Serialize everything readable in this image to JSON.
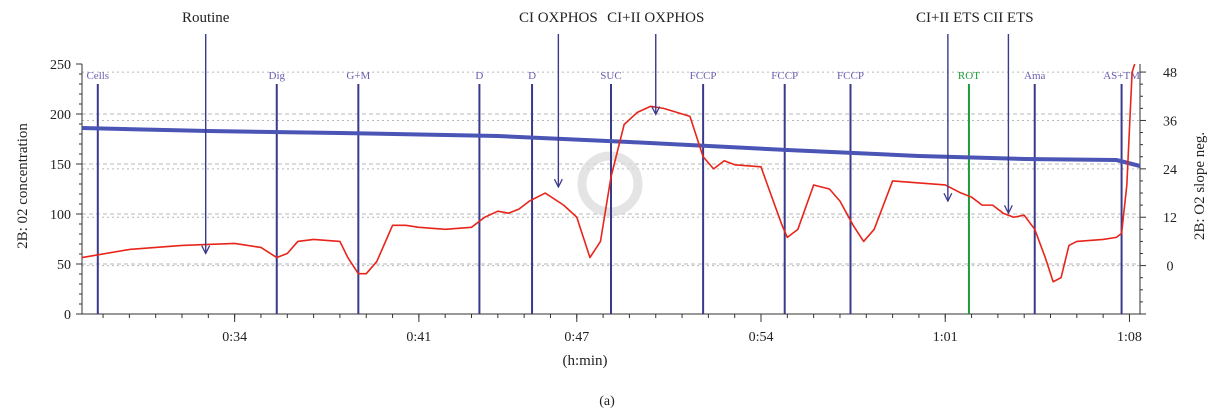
{
  "chart_data": {
    "type": "line",
    "xlabel": "(h:min)",
    "ylabel_left": "2B: 02 concentration",
    "ylabel_right": "2B: O2 slope neg.",
    "caption": "(a)",
    "xlim": [
      28.2,
      68.4
    ],
    "ylim_left": [
      0,
      250
    ],
    "ylim_right": [
      -12,
      50
    ],
    "x_ticks": [
      {
        "value": 34,
        "label": "0:34"
      },
      {
        "value": 41,
        "label": "0:41"
      },
      {
        "value": 47,
        "label": "0:47"
      },
      {
        "value": 54,
        "label": "0:54"
      },
      {
        "value": 61,
        "label": "1:01"
      },
      {
        "value": 68,
        "label": "1:08"
      }
    ],
    "y_ticks_left": [
      0,
      50,
      100,
      150,
      200,
      250
    ],
    "y_ticks_right": [
      0,
      12,
      24,
      36,
      48
    ],
    "grid": true,
    "colors": {
      "concentration": "#4a55b5",
      "slope": "#e8251b",
      "event_line": "#3a3a8c",
      "event_label": "#6a5fb0",
      "rot": "#1f9a3a",
      "grid": "#b8b8b8"
    },
    "series": [
      {
        "axis": "left",
        "color": "#4a55b5",
        "x": [
          28.2,
          33,
          38,
          44,
          49,
          55,
          60,
          64,
          67.5,
          68.4
        ],
        "y": [
          186,
          183,
          181,
          178,
          172,
          164,
          158,
          155,
          154,
          148
        ]
      },
      {
        "axis": "right",
        "color": "#e8251b",
        "x": [
          28.2,
          30,
          32,
          34,
          35,
          35.6,
          36,
          36.4,
          37,
          38,
          38.3,
          38.7,
          39,
          39.4,
          40,
          40.5,
          41,
          42,
          43,
          43.5,
          44,
          44.4,
          44.8,
          45.2,
          45.8,
          46.5,
          47,
          47.5,
          47.9,
          48.3,
          48.8,
          49.3,
          49.8,
          50.3,
          51.3,
          51.8,
          52.2,
          52.6,
          53,
          54,
          54.3,
          54.8,
          55,
          55.4,
          56,
          56.6,
          57,
          57.5,
          57.9,
          58.3,
          59,
          60,
          61,
          61.6,
          62,
          62.4,
          62.8,
          63.2,
          63.6,
          64,
          64.4,
          64.8,
          65.1,
          65.4,
          65.7,
          66,
          67,
          67.5,
          67.7,
          67.9,
          68.1,
          68.2
        ],
        "y": [
          2,
          4,
          5,
          5.5,
          4.5,
          2,
          3,
          6,
          6.5,
          6,
          2,
          -2,
          -2,
          1,
          10,
          10,
          9.5,
          9,
          9.5,
          12,
          13.5,
          13,
          14,
          16,
          18,
          15,
          12,
          2,
          6,
          22,
          35,
          38,
          39.5,
          39,
          37,
          27,
          24,
          26,
          25,
          24.5,
          19,
          10,
          7,
          9,
          20,
          19,
          16,
          10,
          6,
          9,
          21,
          20.5,
          20,
          18,
          17,
          15,
          15,
          13,
          12,
          12.5,
          9,
          2,
          -4,
          -3,
          5,
          6,
          6.5,
          7,
          8,
          20,
          48,
          50
        ]
      }
    ],
    "events": [
      {
        "label": "Cells",
        "x": 28.8
      },
      {
        "label": "Dig",
        "x": 35.6
      },
      {
        "label": "G+M",
        "x": 38.7
      },
      {
        "label": "D",
        "x": 43.3
      },
      {
        "label": "D",
        "x": 45.3
      },
      {
        "label": "SUC",
        "x": 48.3
      },
      {
        "label": "FCCP",
        "x": 51.8
      },
      {
        "label": "FCCP",
        "x": 54.9
      },
      {
        "label": "FCCP",
        "x": 57.4
      },
      {
        "label": "ROT",
        "x": 61.9
      },
      {
        "label": "Ama",
        "x": 64.4
      },
      {
        "label": "AS+TM",
        "x": 67.7
      }
    ],
    "annotations": [
      {
        "label": "Routine",
        "x": 32.9,
        "y_right": 2.5
      },
      {
        "label": "CI OXPHOS",
        "x": 46.3,
        "y_right": 19
      },
      {
        "label": "CI+II OXPHOS",
        "x": 50.0,
        "y_right": 37
      },
      {
        "label": "CI+II ETS",
        "x": 61.1,
        "y_right": 15.5
      },
      {
        "label": "CII ETS",
        "x": 63.4,
        "y_right": 12.5
      }
    ]
  }
}
